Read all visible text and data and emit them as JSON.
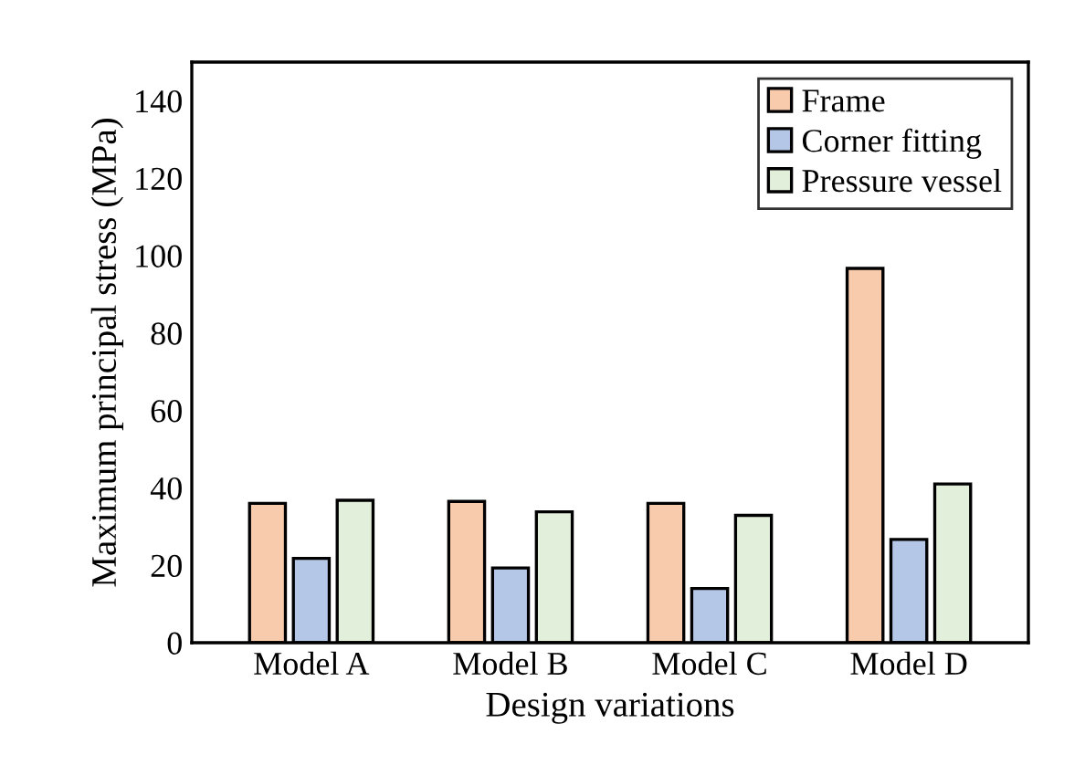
{
  "chart_data": {
    "type": "bar",
    "xlabel": "Design variations",
    "ylabel": "Maximum principal stress (MPa)",
    "categories": [
      "Model A",
      "Model B",
      "Model C",
      "Model D"
    ],
    "series": [
      {
        "name": "Frame",
        "color": "#f8cbad",
        "values": [
          36.0,
          36.5,
          36.0,
          96.7
        ]
      },
      {
        "name": "Corner fitting",
        "color": "#b4c7e7",
        "values": [
          21.8,
          19.3,
          14.0,
          26.7
        ]
      },
      {
        "name": "Pressure vessel",
        "color": "#e2efda",
        "values": [
          36.8,
          33.8,
          32.9,
          41.0
        ]
      }
    ],
    "ylim": [
      0,
      150
    ],
    "yticks": [
      0,
      20,
      40,
      60,
      80,
      100,
      120,
      140
    ],
    "grid": false,
    "legend": "top right"
  }
}
